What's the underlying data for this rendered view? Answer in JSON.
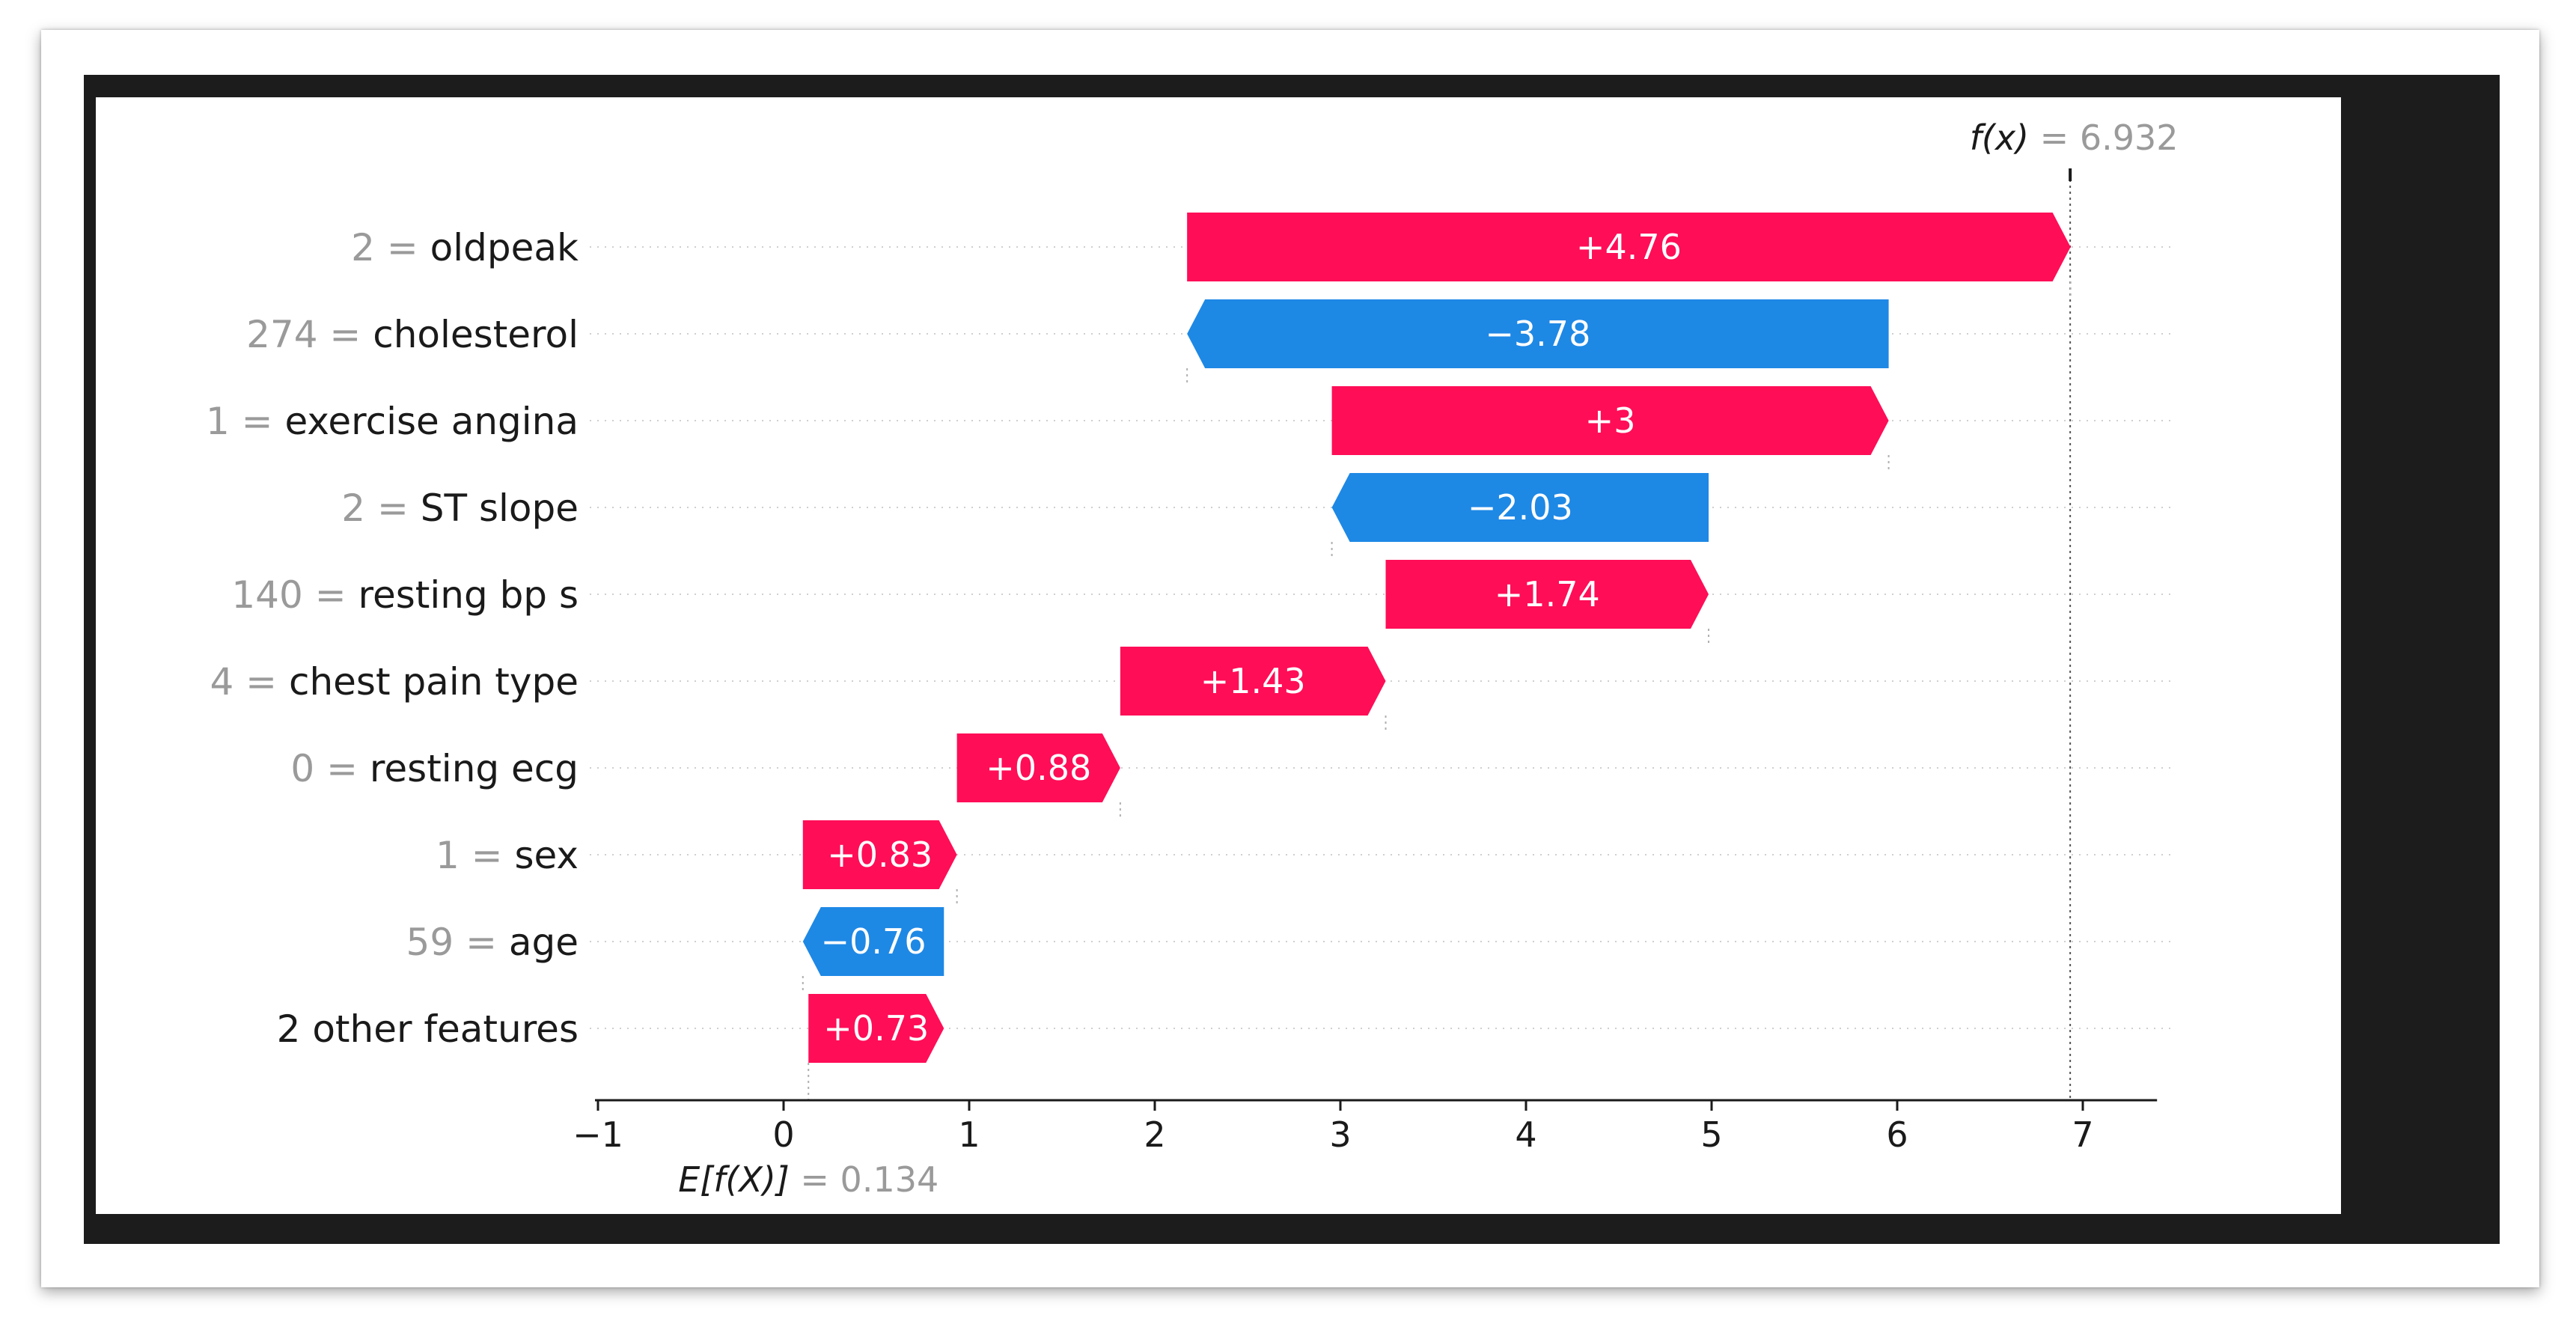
{
  "chart_data": {
    "type": "bar",
    "orientation": "horizontal-waterfall",
    "base_value": 0.134,
    "final_value": 6.932,
    "base_label_expr": "E[f(X)]",
    "base_label_value": "0.134",
    "final_label_expr": "f(x)",
    "final_label_value": "6.932",
    "xlim": [
      -1,
      7.4
    ],
    "x_ticks": [
      -1,
      0,
      1,
      2,
      3,
      4,
      5,
      6,
      7
    ],
    "x_tick_labels": [
      "−1",
      "0",
      "1",
      "2",
      "3",
      "4",
      "5",
      "6",
      "7"
    ],
    "grid": false,
    "colors": {
      "positive": "#ff0d57",
      "negative": "#1e88e5"
    },
    "features": [
      {
        "value_text": "2",
        "name": "oldpeak",
        "contribution": 4.76,
        "label": "+4.76"
      },
      {
        "value_text": "274",
        "name": "cholesterol",
        "contribution": -3.78,
        "label": "−3.78"
      },
      {
        "value_text": "1",
        "name": "exercise angina",
        "contribution": 3.0,
        "label": "+3"
      },
      {
        "value_text": "2",
        "name": "ST slope",
        "contribution": -2.03,
        "label": "−2.03"
      },
      {
        "value_text": "140",
        "name": "resting bp s",
        "contribution": 1.74,
        "label": "+1.74"
      },
      {
        "value_text": "4",
        "name": "chest pain type",
        "contribution": 1.43,
        "label": "+1.43"
      },
      {
        "value_text": "0",
        "name": "resting ecg",
        "contribution": 0.88,
        "label": "+0.88"
      },
      {
        "value_text": "1",
        "name": "sex",
        "contribution": 0.83,
        "label": "+0.83"
      },
      {
        "value_text": "59",
        "name": "age",
        "contribution": -0.76,
        "label": "−0.76"
      },
      {
        "value_text": "",
        "name": "2 other features",
        "contribution": 0.73,
        "label": "+0.73"
      }
    ]
  }
}
